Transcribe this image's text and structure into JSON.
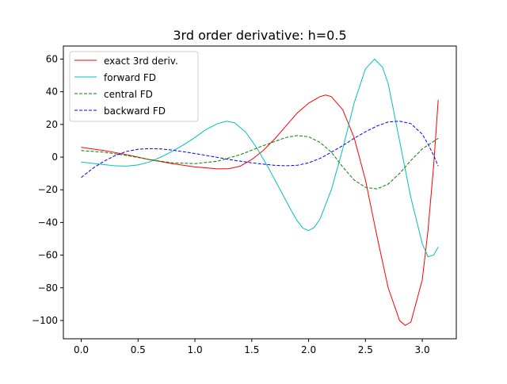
{
  "chart_data": {
    "type": "line",
    "title": "3rd order derivative: h=0.5",
    "xlim": [
      -0.157,
      3.299
    ],
    "ylim": [
      -111.2,
      68.0
    ],
    "xticks": [
      0.0,
      0.5,
      1.0,
      1.5,
      2.0,
      2.5,
      3.0
    ],
    "xtick_labels": [
      "0.0",
      "0.5",
      "1.0",
      "1.5",
      "2.0",
      "2.5",
      "3.0"
    ],
    "yticks": [
      60,
      40,
      20,
      0,
      -20,
      -40,
      -60,
      -80,
      -100
    ],
    "ytick_labels": [
      "60",
      "40",
      "20",
      "0",
      "−20",
      "−40",
      "−60",
      "−80",
      "−100"
    ],
    "grid": false,
    "legend_position": "top-left",
    "series": [
      {
        "name": "exact 3rd deriv.",
        "color": "#ff0000",
        "dash": "solid",
        "x": [
          0.0,
          0.2,
          0.4,
          0.6,
          0.8,
          1.0,
          1.2,
          1.3,
          1.4,
          1.5,
          1.6,
          1.7,
          1.8,
          1.9,
          2.0,
          2.1,
          2.15,
          2.2,
          2.3,
          2.4,
          2.5,
          2.6,
          2.7,
          2.8,
          2.85,
          2.9,
          3.0,
          3.05,
          3.1,
          3.14
        ],
        "y": [
          6,
          4,
          1.5,
          -1.5,
          -4,
          -6,
          -7.2,
          -7.1,
          -5.5,
          -1.5,
          4,
          11,
          19,
          27,
          33,
          37,
          38,
          37,
          29,
          12,
          -14,
          -48,
          -80,
          -100,
          -103,
          -101,
          -75,
          -45,
          -5,
          35
        ]
      },
      {
        "name": "forward FD",
        "color": "#00bfbf",
        "dash": "solid",
        "x": [
          0.0,
          0.1,
          0.2,
          0.3,
          0.4,
          0.5,
          0.6,
          0.7,
          0.8,
          0.9,
          1.0,
          1.1,
          1.2,
          1.28,
          1.35,
          1.45,
          1.55,
          1.65,
          1.75,
          1.85,
          1.9,
          1.95,
          2.0,
          2.05,
          2.1,
          2.2,
          2.3,
          2.4,
          2.5,
          2.58,
          2.65,
          2.7,
          2.8,
          2.9,
          3.0,
          3.05,
          3.1,
          3.14
        ],
        "y": [
          -3,
          -3.8,
          -4.6,
          -5.3,
          -5.5,
          -4.8,
          -3,
          0,
          3.5,
          7.5,
          12,
          17,
          20.5,
          22,
          21,
          15,
          5,
          -7,
          -20,
          -33,
          -39,
          -43.5,
          -45,
          -43,
          -38,
          -20,
          5,
          33,
          54,
          60,
          55,
          45,
          10,
          -25,
          -53,
          -61,
          -60,
          -55
        ]
      },
      {
        "name": "central FD",
        "color": "#008000",
        "dash": "dashed",
        "x": [
          0.0,
          0.2,
          0.4,
          0.6,
          0.8,
          1.0,
          1.2,
          1.4,
          1.6,
          1.8,
          1.9,
          2.0,
          2.1,
          2.2,
          2.3,
          2.4,
          2.5,
          2.6,
          2.7,
          2.8,
          2.9,
          3.0,
          3.14
        ],
        "y": [
          4,
          3,
          1,
          -1.5,
          -3.5,
          -4,
          -2.5,
          1.5,
          7,
          12,
          13.2,
          12.5,
          9,
          3,
          -6,
          -14,
          -18.5,
          -19.5,
          -16.5,
          -10,
          -2,
          5,
          11.5
        ]
      },
      {
        "name": "backward FD",
        "color": "#0000ff",
        "dash": "dashed",
        "x": [
          0.0,
          0.1,
          0.2,
          0.3,
          0.4,
          0.5,
          0.6,
          0.7,
          0.8,
          0.9,
          1.0,
          1.1,
          1.2,
          1.3,
          1.4,
          1.5,
          1.6,
          1.7,
          1.8,
          1.9,
          2.0,
          2.1,
          2.2,
          2.3,
          2.4,
          2.5,
          2.6,
          2.7,
          2.8,
          2.9,
          3.0,
          3.05,
          3.1,
          3.14
        ],
        "y": [
          -12.5,
          -7,
          -2.5,
          1,
          3.5,
          4.8,
          5.2,
          5,
          4.3,
          3.3,
          2.2,
          1,
          -0.2,
          -1.5,
          -2.5,
          -3.5,
          -4.3,
          -5,
          -5.3,
          -5,
          -3.5,
          -0.8,
          3,
          7,
          11.5,
          15.5,
          19,
          21.5,
          22,
          20.5,
          14,
          8,
          1,
          -5.5
        ]
      }
    ]
  }
}
